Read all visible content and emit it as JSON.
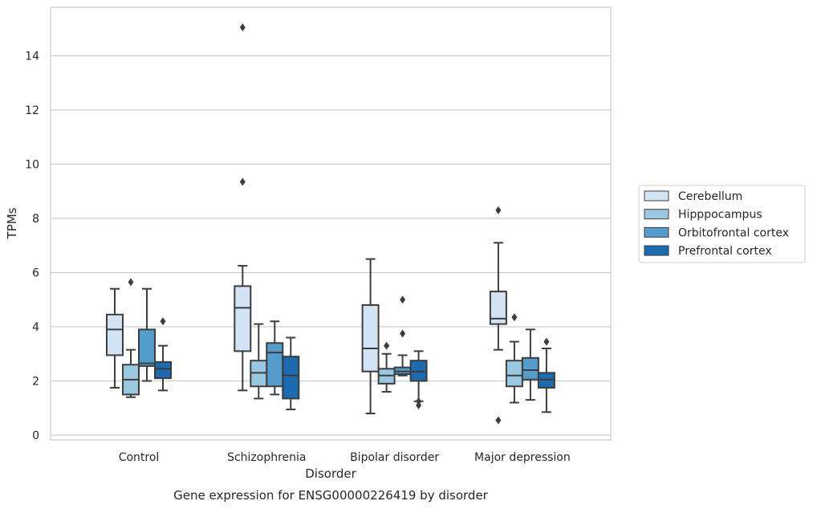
{
  "chart_data": {
    "type": "box",
    "xlabel": "Disorder",
    "ylabel": "TPMs",
    "caption": "Gene expression for ENSG00000226419 by disorder",
    "categories": [
      "Control",
      "Schizophrenia",
      "Bipolar disorder",
      "Major depression"
    ],
    "ylim": [
      -0.2,
      15.8
    ],
    "yticks": [
      0,
      2,
      4,
      6,
      8,
      10,
      12,
      14
    ],
    "grid": "horizontal",
    "legend_position": "right",
    "series": [
      {
        "name": "Cerebellum",
        "color": "#d2e3f3",
        "boxes": [
          {
            "min": 1.75,
            "q1": 2.95,
            "median": 3.9,
            "q3": 4.45,
            "max": 5.4,
            "outliers": []
          },
          {
            "min": 1.65,
            "q1": 3.1,
            "median": 4.7,
            "q3": 5.5,
            "max": 6.25,
            "outliers": [
              9.35,
              15.05
            ]
          },
          {
            "min": 0.8,
            "q1": 2.35,
            "median": 3.2,
            "q3": 4.8,
            "max": 6.5,
            "outliers": []
          },
          {
            "min": 3.15,
            "q1": 4.1,
            "median": 4.3,
            "q3": 5.3,
            "max": 7.1,
            "outliers": [
              8.3,
              0.55
            ]
          }
        ]
      },
      {
        "name": "Hipppocampus",
        "color": "#9ac8e0",
        "boxes": [
          {
            "min": 1.4,
            "q1": 1.5,
            "median": 2.05,
            "q3": 2.6,
            "max": 3.15,
            "outliers": [
              5.65
            ]
          },
          {
            "min": 1.35,
            "q1": 1.8,
            "median": 2.3,
            "q3": 2.75,
            "max": 4.1,
            "outliers": []
          },
          {
            "min": 1.6,
            "q1": 1.9,
            "median": 2.2,
            "q3": 2.45,
            "max": 3.0,
            "outliers": [
              3.3
            ]
          },
          {
            "min": 1.2,
            "q1": 1.8,
            "median": 2.2,
            "q3": 2.75,
            "max": 3.45,
            "outliers": [
              4.35
            ]
          }
        ]
      },
      {
        "name": "Orbitofrontal cortex",
        "color": "#529dcc",
        "boxes": [
          {
            "min": 2.0,
            "q1": 2.55,
            "median": 2.65,
            "q3": 3.9,
            "max": 5.4,
            "outliers": []
          },
          {
            "min": 1.5,
            "q1": 1.8,
            "median": 3.05,
            "q3": 3.4,
            "max": 4.2,
            "outliers": []
          },
          {
            "min": 2.2,
            "q1": 2.25,
            "median": 2.35,
            "q3": 2.5,
            "max": 2.95,
            "outliers": [
              3.75,
              5.0
            ]
          },
          {
            "min": 1.3,
            "q1": 2.05,
            "median": 2.4,
            "q3": 2.85,
            "max": 3.9,
            "outliers": []
          }
        ]
      },
      {
        "name": "Prefrontal cortex",
        "color": "#1c6aaf",
        "boxes": [
          {
            "min": 1.65,
            "q1": 2.1,
            "median": 2.45,
            "q3": 2.7,
            "max": 3.3,
            "outliers": [
              4.2
            ]
          },
          {
            "min": 0.95,
            "q1": 1.35,
            "median": 2.2,
            "q3": 2.9,
            "max": 3.6,
            "outliers": []
          },
          {
            "min": 1.25,
            "q1": 2.0,
            "median": 2.35,
            "q3": 2.75,
            "max": 3.1,
            "outliers": [
              1.1,
              1.25
            ]
          },
          {
            "min": 0.85,
            "q1": 1.75,
            "median": 2.05,
            "q3": 2.3,
            "max": 3.2,
            "outliers": [
              3.45
            ]
          }
        ]
      }
    ]
  }
}
